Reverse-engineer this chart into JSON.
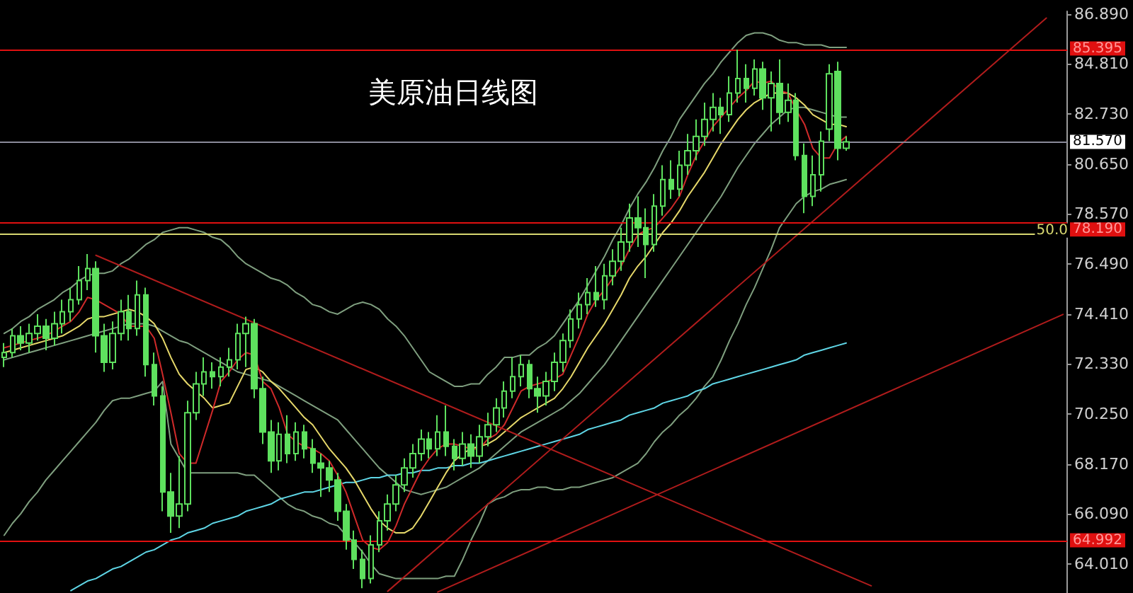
{
  "chart_data": {
    "type": "candlestick",
    "title": "美原油日线图",
    "color": "#5ee05e",
    "categories": [
      null,
      null,
      null,
      null,
      null,
      null,
      null,
      null,
      null,
      null,
      null,
      null,
      null,
      null,
      null,
      null,
      null,
      null,
      null,
      null,
      null,
      null,
      null,
      null,
      null,
      null,
      null,
      null,
      null,
      null,
      null,
      null,
      null,
      null,
      null,
      null,
      null,
      null,
      null,
      null,
      null,
      null,
      null,
      null,
      null,
      null,
      null,
      null,
      null,
      null,
      null,
      null,
      null,
      null,
      null,
      null,
      null,
      null,
      null,
      null,
      null,
      null,
      null,
      null,
      null,
      null,
      null,
      null,
      null,
      null,
      null,
      null,
      null,
      null,
      null,
      null,
      null,
      null,
      null,
      null,
      null,
      null,
      null,
      null,
      null,
      null,
      null,
      null,
      null,
      null,
      null,
      null,
      null,
      null,
      null,
      null,
      null,
      null,
      null,
      null,
      null,
      null,
      null,
      null,
      null,
      null,
      null,
      null,
      null,
      null,
      null,
      null,
      null,
      null,
      null,
      null,
      null,
      null,
      null,
      null,
      null,
      null,
      null,
      null,
      null,
      null,
      null,
      null
    ],
    "ohlc": [
      [
        72.6,
        73.2,
        72.2,
        72.8
      ],
      [
        72.8,
        73.8,
        72.6,
        73.5
      ],
      [
        73.5,
        73.9,
        72.9,
        73.2
      ],
      [
        73.2,
        74.0,
        72.8,
        73.6
      ],
      [
        73.6,
        74.4,
        73.3,
        73.9
      ],
      [
        73.9,
        74.2,
        72.9,
        73.4
      ],
      [
        73.4,
        74.5,
        73.1,
        74.0
      ],
      [
        74.0,
        75.0,
        73.6,
        74.5
      ],
      [
        74.5,
        75.5,
        74.1,
        75.0
      ],
      [
        75.0,
        76.4,
        74.8,
        75.8
      ],
      [
        75.8,
        76.9,
        75.4,
        76.3
      ],
      [
        76.3,
        76.6,
        72.8,
        73.5
      ],
      [
        73.5,
        74.0,
        72.0,
        72.4
      ],
      [
        72.4,
        74.1,
        72.1,
        73.6
      ],
      [
        73.6,
        75.0,
        73.3,
        74.5
      ],
      [
        74.5,
        75.2,
        73.3,
        73.8
      ],
      [
        73.8,
        75.8,
        73.5,
        75.2
      ],
      [
        75.2,
        75.5,
        71.8,
        72.3
      ],
      [
        72.3,
        72.8,
        70.6,
        71.0
      ],
      [
        71.0,
        71.4,
        66.2,
        67.0
      ],
      [
        67.0,
        67.8,
        65.3,
        66.0
      ],
      [
        66.0,
        68.5,
        65.5,
        66.5
      ],
      [
        66.5,
        70.8,
        66.2,
        70.3
      ],
      [
        70.3,
        72.0,
        70.0,
        71.5
      ],
      [
        71.5,
        72.6,
        71.0,
        72.0
      ],
      [
        72.0,
        72.4,
        71.3,
        71.8
      ],
      [
        71.8,
        72.6,
        71.4,
        72.2
      ],
      [
        72.2,
        73.0,
        71.8,
        72.5
      ],
      [
        72.5,
        74.0,
        72.1,
        73.6
      ],
      [
        73.6,
        74.3,
        72.2,
        74.0
      ],
      [
        74.0,
        74.2,
        70.9,
        71.3
      ],
      [
        71.3,
        71.8,
        69.0,
        69.5
      ],
      [
        69.5,
        70.0,
        67.8,
        68.3
      ],
      [
        68.3,
        69.9,
        67.9,
        69.4
      ],
      [
        69.4,
        70.2,
        68.2,
        68.6
      ],
      [
        68.6,
        69.9,
        68.3,
        69.5
      ],
      [
        69.5,
        69.8,
        68.4,
        68.8
      ],
      [
        68.8,
        69.2,
        67.8,
        68.2
      ],
      [
        68.2,
        68.6,
        66.8,
        68.0
      ],
      [
        68.0,
        68.3,
        67.0,
        67.5
      ],
      [
        67.5,
        67.8,
        65.8,
        66.2
      ],
      [
        66.2,
        66.5,
        64.6,
        65.0
      ],
      [
        65.0,
        65.4,
        63.8,
        64.2
      ],
      [
        64.2,
        64.6,
        63.0,
        63.4
      ],
      [
        63.4,
        65.2,
        63.2,
        64.8
      ],
      [
        64.8,
        66.2,
        64.5,
        65.8
      ],
      [
        65.8,
        66.9,
        65.4,
        66.5
      ],
      [
        66.5,
        67.7,
        66.2,
        67.3
      ],
      [
        67.3,
        68.4,
        67.0,
        68.0
      ],
      [
        68.0,
        69.0,
        67.6,
        68.6
      ],
      [
        68.6,
        69.6,
        68.3,
        69.2
      ],
      [
        69.2,
        69.5,
        68.4,
        68.8
      ],
      [
        68.8,
        70.2,
        68.5,
        69.5
      ],
      [
        69.5,
        70.6,
        68.5,
        68.9
      ],
      [
        68.9,
        69.2,
        67.9,
        68.4
      ],
      [
        68.4,
        69.5,
        68.1,
        69.0
      ],
      [
        69.0,
        69.4,
        68.0,
        68.5
      ],
      [
        68.5,
        69.8,
        68.2,
        69.3
      ],
      [
        69.3,
        70.3,
        68.9,
        69.8
      ],
      [
        69.8,
        70.9,
        69.5,
        70.5
      ],
      [
        70.5,
        71.6,
        70.1,
        71.2
      ],
      [
        71.2,
        72.6,
        70.9,
        71.8
      ],
      [
        71.8,
        72.7,
        71.4,
        72.3
      ],
      [
        72.3,
        72.5,
        70.9,
        71.3
      ],
      [
        71.3,
        71.8,
        70.3,
        71.0
      ],
      [
        71.0,
        72.0,
        70.6,
        71.6
      ],
      [
        71.6,
        72.8,
        71.2,
        72.4
      ],
      [
        72.4,
        73.6,
        72.0,
        73.3
      ],
      [
        73.3,
        74.6,
        73.0,
        74.2
      ],
      [
        74.2,
        75.3,
        73.8,
        74.8
      ],
      [
        74.8,
        75.9,
        74.4,
        75.3
      ],
      [
        75.3,
        76.4,
        74.7,
        75.0
      ],
      [
        75.0,
        76.5,
        74.6,
        76.0
      ],
      [
        76.0,
        77.1,
        75.6,
        76.6
      ],
      [
        76.6,
        78.0,
        76.2,
        77.4
      ],
      [
        77.4,
        79.0,
        77.0,
        78.4
      ],
      [
        78.4,
        79.3,
        77.2,
        78.0
      ],
      [
        78.0,
        78.8,
        75.9,
        77.3
      ],
      [
        77.3,
        79.4,
        77.0,
        78.9
      ],
      [
        78.9,
        80.6,
        78.5,
        80.0
      ],
      [
        80.0,
        80.8,
        79.2,
        79.6
      ],
      [
        79.6,
        81.2,
        79.3,
        80.6
      ],
      [
        80.6,
        81.9,
        80.2,
        81.2
      ],
      [
        81.2,
        82.5,
        80.8,
        81.8
      ],
      [
        81.8,
        83.2,
        81.4,
        82.5
      ],
      [
        82.5,
        83.6,
        82.0,
        83.0
      ],
      [
        83.0,
        83.4,
        81.9,
        82.7
      ],
      [
        82.7,
        84.3,
        82.4,
        83.6
      ],
      [
        83.6,
        85.4,
        83.2,
        84.2
      ],
      [
        84.2,
        84.8,
        83.2,
        83.8
      ],
      [
        83.8,
        85.0,
        83.5,
        84.6
      ],
      [
        84.6,
        84.9,
        82.9,
        83.4
      ],
      [
        83.4,
        84.5,
        82.0,
        84.0
      ],
      [
        84.0,
        85.0,
        82.3,
        82.8
      ],
      [
        82.8,
        84.0,
        82.4,
        83.3
      ],
      [
        83.3,
        83.6,
        80.8,
        81.0
      ],
      [
        81.0,
        81.5,
        78.6,
        79.3
      ],
      [
        79.3,
        81.0,
        78.9,
        80.2
      ],
      [
        80.2,
        82.0,
        79.5,
        81.6
      ],
      [
        82.1,
        84.8,
        81.6,
        84.4
      ],
      [
        84.5,
        84.9,
        80.8,
        81.3
      ],
      [
        81.3,
        81.8,
        81.2,
        81.57
      ],
      null,
      null,
      null,
      null,
      null,
      null,
      null,
      null,
      null,
      null,
      null,
      null,
      null,
      null,
      null,
      null,
      null,
      null,
      null,
      null,
      null,
      null,
      null,
      null,
      null,
      null
    ],
    "series": [
      {
        "type": "line",
        "color": "#7f9f7f",
        "values": [
          73.6,
          73.8,
          74.1,
          74.3,
          74.6,
          74.8,
          75.0,
          75.3,
          75.5,
          75.8,
          76.0,
          76.1,
          76.1,
          76.2,
          76.5,
          76.7,
          77.0,
          77.3,
          77.5,
          77.8,
          77.9,
          78.0,
          78.0,
          77.9,
          77.8,
          77.6,
          77.5,
          77.2,
          76.8,
          76.5,
          76.3,
          76.1,
          75.9,
          75.8,
          75.6,
          75.3,
          75.1,
          74.8,
          74.7,
          74.5,
          74.4,
          74.6,
          74.8,
          74.9,
          74.8,
          74.6,
          74.2,
          73.9,
          73.5,
          73.0,
          72.5,
          72.0,
          71.8,
          71.6,
          71.4,
          71.4,
          71.5,
          71.5,
          71.9,
          72.2,
          72.6,
          72.6,
          72.7,
          72.7,
          73.0,
          73.2,
          73.5,
          74.0,
          74.5,
          75.0,
          75.6,
          76.2,
          76.8,
          77.5,
          78.1,
          78.8,
          79.4,
          79.9,
          80.5,
          81.2,
          81.8,
          82.5,
          83.0,
          83.5,
          84.0,
          84.4,
          84.9,
          85.3,
          85.7,
          86.0,
          86.1,
          86.1,
          86.0,
          85.8,
          85.7,
          85.7,
          85.6,
          85.6,
          85.6,
          85.5,
          85.5,
          85.5,
          null,
          null,
          null,
          null,
          null,
          null,
          null,
          null,
          null,
          null,
          null,
          null,
          null,
          null,
          null,
          null,
          null,
          null,
          null,
          null,
          null,
          null,
          null,
          null,
          null,
          null
        ]
      },
      {
        "type": "line",
        "color": "#7f9f7f",
        "values": [
          72.5,
          72.6,
          72.7,
          72.8,
          72.9,
          73.0,
          73.1,
          73.2,
          73.3,
          73.4,
          73.5,
          73.6,
          73.7,
          73.8,
          73.9,
          74.0,
          74.0,
          74.0,
          73.9,
          73.7,
          73.5,
          73.3,
          73.2,
          73.0,
          72.8,
          72.6,
          72.4,
          72.2,
          72.0,
          71.9,
          71.8,
          71.7,
          71.6,
          71.4,
          71.2,
          71.0,
          70.8,
          70.6,
          70.4,
          70.2,
          70.0,
          69.6,
          69.2,
          68.8,
          68.4,
          68.0,
          67.7,
          67.4,
          67.1,
          67.0,
          66.9,
          67.0,
          67.1,
          67.2,
          67.4,
          67.6,
          67.8,
          68.0,
          68.3,
          68.6,
          68.9,
          69.2,
          69.5,
          69.7,
          69.9,
          70.1,
          70.3,
          70.5,
          70.8,
          71.1,
          71.5,
          71.9,
          72.3,
          72.8,
          73.3,
          73.8,
          74.3,
          74.8,
          75.3,
          75.8,
          76.3,
          76.8,
          77.3,
          77.8,
          78.3,
          78.8,
          79.3,
          79.9,
          80.5,
          81.0,
          81.5,
          81.9,
          82.3,
          82.6,
          82.9,
          83.0,
          83.0,
          82.9,
          82.8,
          82.7,
          82.6,
          82.6,
          null,
          null,
          null,
          null,
          null,
          null,
          null,
          null,
          null,
          null,
          null,
          null,
          null,
          null,
          null,
          null,
          null,
          null,
          null,
          null,
          null,
          null,
          null,
          null,
          null,
          null
        ]
      },
      {
        "type": "line",
        "color": "#7f9f7f",
        "values": [
          65.2,
          65.7,
          66.1,
          66.6,
          67.0,
          67.5,
          67.9,
          68.3,
          68.7,
          69.1,
          69.5,
          69.9,
          70.4,
          70.8,
          70.9,
          70.9,
          71.0,
          71.1,
          71.2,
          71.6,
          69.0,
          68.4,
          67.8,
          67.8,
          67.8,
          67.8,
          67.8,
          67.8,
          67.8,
          67.7,
          67.7,
          67.4,
          67.1,
          66.8,
          66.5,
          66.3,
          66.2,
          66.0,
          65.9,
          65.7,
          65.6,
          65.2,
          64.9,
          64.5,
          64.0,
          63.6,
          63.5,
          63.4,
          63.4,
          63.4,
          63.4,
          63.4,
          63.4,
          63.5,
          63.5,
          64.2,
          65.0,
          65.7,
          66.5,
          66.7,
          66.8,
          67.0,
          67.1,
          67.1,
          67.2,
          67.2,
          67.1,
          67.1,
          67.2,
          67.2,
          67.3,
          67.4,
          67.5,
          67.6,
          67.8,
          68.0,
          68.2,
          68.6,
          69.1,
          69.5,
          69.8,
          70.2,
          70.5,
          70.9,
          71.4,
          71.8,
          72.5,
          73.3,
          74.0,
          74.8,
          75.5,
          76.3,
          77.1,
          78.0,
          78.5,
          79.0,
          79.3,
          79.5,
          79.6,
          79.8,
          79.9,
          80.0,
          null,
          null,
          null,
          null,
          null,
          null,
          null,
          null,
          null,
          null,
          null,
          null,
          null,
          null,
          null,
          null,
          null,
          null,
          null,
          null,
          null,
          null,
          null,
          null,
          null,
          null
        ]
      },
      {
        "type": "line",
        "color": "#5fd6e6",
        "values": [
          null,
          null,
          null,
          null,
          null,
          null,
          null,
          null,
          62.9,
          63.1,
          63.3,
          63.4,
          63.6,
          63.8,
          63.9,
          64.1,
          64.3,
          64.5,
          64.6,
          64.8,
          65.0,
          65.1,
          65.3,
          65.4,
          65.5,
          65.7,
          65.8,
          65.9,
          66.0,
          66.2,
          66.3,
          66.4,
          66.5,
          66.7,
          66.8,
          66.9,
          67.0,
          67.0,
          67.1,
          67.2,
          67.3,
          67.4,
          67.4,
          67.5,
          67.6,
          67.6,
          67.7,
          67.7,
          67.8,
          67.8,
          67.9,
          67.9,
          68.0,
          68.0,
          68.1,
          68.1,
          68.2,
          68.2,
          68.3,
          68.4,
          68.5,
          68.6,
          68.7,
          68.8,
          68.9,
          69.0,
          69.1,
          69.2,
          69.3,
          69.4,
          69.6,
          69.7,
          69.8,
          69.9,
          70.0,
          70.2,
          70.3,
          70.4,
          70.5,
          70.7,
          70.8,
          70.9,
          71.0,
          71.2,
          71.3,
          71.5,
          71.6,
          71.7,
          71.8,
          71.9,
          72.0,
          72.1,
          72.2,
          72.3,
          72.4,
          72.5,
          72.7,
          72.8,
          72.9,
          73.0,
          73.1,
          73.2,
          null,
          null,
          null,
          null,
          null,
          null,
          null,
          null,
          null,
          null,
          null,
          null,
          null,
          null,
          null,
          null,
          null,
          null,
          null,
          null,
          null,
          null,
          null,
          null,
          null,
          null
        ]
      },
      {
        "type": "line",
        "color": "#e6d86a",
        "values": [
          72.8,
          72.9,
          73.0,
          73.1,
          73.2,
          73.3,
          73.4,
          73.5,
          73.7,
          73.9,
          74.2,
          74.3,
          74.3,
          74.4,
          74.5,
          74.6,
          74.5,
          74.3,
          74.0,
          73.4,
          72.6,
          71.9,
          71.5,
          71.2,
          70.9,
          70.5,
          70.6,
          70.7,
          71.4,
          72.1,
          72.2,
          72.0,
          71.6,
          71.3,
          70.9,
          70.5,
          70.1,
          69.8,
          69.3,
          68.8,
          68.4,
          68.0,
          67.5,
          66.9,
          66.3,
          65.8,
          65.5,
          65.3,
          65.3,
          65.5,
          66.0,
          66.6,
          67.2,
          67.8,
          68.3,
          68.6,
          68.8,
          68.9,
          69.0,
          69.2,
          69.5,
          69.8,
          70.1,
          70.3,
          70.5,
          70.7,
          70.9,
          71.3,
          71.8,
          72.4,
          73.0,
          73.5,
          74.0,
          74.6,
          75.2,
          75.9,
          76.4,
          76.8,
          77.3,
          77.8,
          78.2,
          78.7,
          79.3,
          79.8,
          80.3,
          80.9,
          81.5,
          82.0,
          82.5,
          82.9,
          83.2,
          83.4,
          83.6,
          83.6,
          83.6,
          83.4,
          83.1,
          82.7,
          82.5,
          82.3,
          82.3,
          82.2,
          null,
          null,
          null,
          null,
          null,
          null,
          null,
          null,
          null,
          null,
          null,
          null,
          null,
          null,
          null,
          null,
          null,
          null,
          null,
          null,
          null,
          null,
          null,
          null,
          null,
          null
        ]
      },
      {
        "type": "line",
        "color": "#d02a2a",
        "values": [
          73.0,
          73.1,
          73.2,
          73.3,
          73.4,
          73.5,
          73.7,
          73.9,
          74.1,
          74.5,
          75.1,
          75.0,
          74.8,
          74.6,
          74.4,
          73.9,
          73.9,
          73.9,
          73.4,
          71.9,
          70.3,
          68.6,
          68.2,
          68.2,
          69.3,
          70.4,
          71.6,
          72.0,
          72.5,
          72.8,
          72.7,
          71.6,
          71.3,
          70.5,
          69.4,
          69.1,
          68.9,
          68.8,
          68.6,
          68.3,
          67.7,
          67.0,
          66.0,
          65.0,
          64.7,
          64.6,
          64.9,
          65.6,
          66.5,
          67.2,
          67.9,
          68.4,
          68.8,
          69.0,
          69.0,
          68.9,
          68.8,
          68.8,
          69.2,
          69.4,
          69.8,
          70.5,
          71.2,
          71.4,
          71.5,
          71.6,
          71.7,
          71.9,
          72.7,
          73.5,
          74.4,
          75.0,
          75.4,
          75.9,
          76.4,
          77.1,
          77.7,
          77.9,
          78.0,
          78.4,
          78.8,
          79.3,
          80.2,
          81.0,
          81.6,
          82.2,
          82.6,
          83.0,
          83.4,
          83.7,
          84.1,
          84.0,
          84.1,
          83.7,
          83.6,
          82.9,
          82.3,
          81.3,
          80.9,
          80.9,
          81.5,
          81.8,
          null,
          null,
          null,
          null,
          null,
          null,
          null,
          null,
          null,
          null,
          null,
          null,
          null,
          null,
          null,
          null,
          null,
          null,
          null,
          null,
          null,
          null,
          null,
          null,
          null,
          null
        ]
      },
      {
        "type": "line",
        "color": "#b01c1c",
        "values": [
          null,
          null,
          null,
          null,
          null,
          null,
          null,
          null,
          null,
          null,
          null,
          76.85,
          null,
          null,
          null,
          null,
          null,
          null,
          null,
          null,
          null,
          null,
          null,
          null,
          null,
          null,
          null,
          null,
          null,
          null,
          null,
          null,
          null,
          null,
          null,
          null,
          null,
          null,
          null,
          null,
          null,
          null,
          null,
          null,
          null,
          null,
          null,
          null,
          null,
          null,
          null,
          null,
          null,
          null,
          null,
          null,
          null,
          null,
          null,
          null,
          null,
          null,
          null,
          null,
          null,
          null,
          null,
          null,
          null,
          null,
          null,
          null,
          null,
          null,
          null,
          null,
          null,
          null,
          null,
          null,
          null,
          null,
          null,
          null,
          null,
          null,
          null,
          null,
          null,
          null,
          null,
          null,
          null,
          null,
          null,
          null,
          null,
          null,
          null,
          null,
          null,
          null,
          null,
          null,
          63.1,
          null,
          null,
          null,
          null,
          null,
          null,
          null,
          null,
          null,
          null,
          null,
          null,
          null,
          null,
          null,
          null,
          null,
          null,
          null,
          null,
          null,
          null,
          null
        ]
      },
      {
        "type": "line",
        "color": "#b01c1c",
        "values": [
          null,
          null,
          null,
          null,
          null,
          null,
          null,
          null,
          null,
          null,
          null,
          null,
          null,
          null,
          null,
          null,
          null,
          null,
          null,
          null,
          null,
          null,
          null,
          null,
          null,
          null,
          null,
          null,
          null,
          null,
          null,
          null,
          null,
          null,
          null,
          null,
          null,
          null,
          null,
          null,
          null,
          null,
          null,
          null,
          null,
          null,
          62.87,
          null,
          null,
          null,
          null,
          null,
          null,
          null,
          null,
          null,
          null,
          null,
          null,
          null,
          null,
          null,
          null,
          null,
          null,
          null,
          null,
          null,
          null,
          null,
          null,
          null,
          null,
          null,
          null,
          null,
          null,
          null,
          null,
          null,
          null,
          null,
          null,
          null,
          null,
          null,
          null,
          null,
          null,
          null,
          null,
          null,
          null,
          null,
          null,
          null,
          null,
          null,
          null,
          null,
          null,
          null,
          null,
          null,
          null,
          null,
          null,
          null,
          null,
          null,
          null,
          null,
          null,
          null,
          null,
          null,
          null,
          null,
          null,
          null,
          null,
          null,
          null,
          null,
          null,
          86.72,
          null,
          null
        ]
      },
      {
        "type": "line",
        "color": "#b01c1c",
        "values": [
          null,
          null,
          null,
          null,
          null,
          null,
          null,
          null,
          null,
          null,
          null,
          null,
          null,
          null,
          null,
          null,
          null,
          null,
          null,
          null,
          null,
          null,
          null,
          null,
          null,
          null,
          null,
          null,
          null,
          null,
          null,
          null,
          null,
          null,
          null,
          null,
          null,
          null,
          null,
          null,
          null,
          null,
          null,
          null,
          null,
          null,
          null,
          null,
          null,
          null,
          null,
          null,
          62.84,
          null,
          null,
          null,
          null,
          null,
          null,
          null,
          null,
          null,
          null,
          null,
          null,
          null,
          null,
          null,
          null,
          null,
          null,
          null,
          null,
          null,
          null,
          null,
          null,
          null,
          null,
          null,
          null,
          null,
          null,
          null,
          null,
          null,
          null,
          null,
          null,
          null,
          null,
          null,
          null,
          null,
          null,
          null,
          null,
          null,
          null,
          null,
          null,
          null,
          null,
          null,
          null,
          null,
          null,
          null,
          null,
          null,
          null,
          null,
          null,
          null,
          null,
          null,
          null,
          null,
          null,
          null,
          null,
          null,
          null,
          null,
          null,
          null,
          null,
          74.39
        ]
      }
    ],
    "ylim": [
      62.8,
      87.0
    ],
    "yticks": [
      {
        "value": 64.01,
        "label": "64.010"
      },
      {
        "value": 66.09,
        "label": "66.090"
      },
      {
        "value": 68.17,
        "label": "68.170"
      },
      {
        "value": 70.25,
        "label": "70.250"
      },
      {
        "value": 72.33,
        "label": "72.330"
      },
      {
        "value": 74.41,
        "label": "74.410"
      },
      {
        "value": 76.49,
        "label": "76.490"
      },
      {
        "value": 78.57,
        "label": "78.570"
      },
      {
        "value": 80.65,
        "label": "80.650"
      },
      {
        "value": 82.73,
        "label": "82.730"
      },
      {
        "value": 84.81,
        "label": "84.810"
      },
      {
        "value": 86.89,
        "label": "86.890"
      }
    ],
    "tick_labels": "y",
    "annotations": [
      {
        "text": "50.0",
        "y": 77.76
      }
    ],
    "grid": false,
    "line_style": "solid",
    "ref_lines": [
      {
        "axis": "y",
        "value": 85.395,
        "label": "85.395",
        "color": "#e01010"
      },
      {
        "axis": "y",
        "value": 81.57,
        "label": "81.570",
        "color": "#8a8a9a"
      },
      {
        "axis": "y",
        "value": 78.19,
        "label": "78.190",
        "color": "#e01010"
      },
      {
        "axis": "y",
        "value": 77.76,
        "color": "#d8d870"
      },
      {
        "axis": "y",
        "value": 64.992,
        "label": "64.992",
        "color": "#e01010"
      }
    ]
  }
}
